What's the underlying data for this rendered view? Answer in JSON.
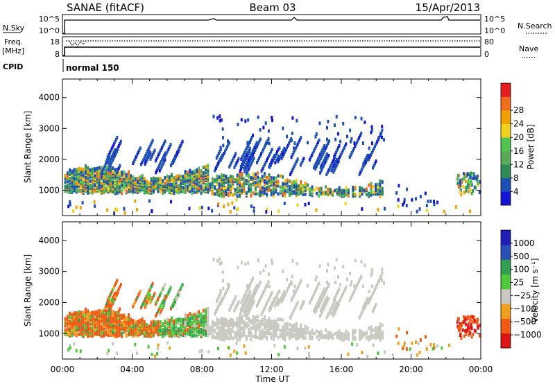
{
  "header": {
    "station": "SANAE (fitACF)",
    "beam": "Beam 03",
    "date": "15/Apr/2013"
  },
  "panels": {
    "nsky": {
      "label": "N.Sky",
      "tick_top": "10^5",
      "tick_bottom": "10^0",
      "right_tick_top": "10^5",
      "right_tick_bottom": "10^0",
      "right_label": "N.Search"
    },
    "freq": {
      "label_line1": "Freq.",
      "label_line2": "[MHz]",
      "tick_top": "18",
      "tick_bottom": "8",
      "right_tick_top": "80",
      "right_tick_bottom": "0",
      "right_label": "Nave"
    },
    "cpid": {
      "label": "CPID",
      "mode": "normal 150"
    }
  },
  "colors": {
    "power": [
      "#1414d2",
      "#1e50b4",
      "#2e8b57",
      "#5aaa5a",
      "#50c850",
      "#f0d21e",
      "#f0a000",
      "#f06e1e",
      "#e61e1e"
    ],
    "velocity": [
      "#dc1414",
      "#f05a14",
      "#f0a01e",
      "#c8c8c0",
      "#50c83c",
      "#32a050",
      "#2850b4",
      "#1e1eb4"
    ]
  },
  "chart_data": [
    {
      "type": "heatmap",
      "name": "power",
      "xlabel": "",
      "ylabel": "Slant Range [km]",
      "xlim": [
        0,
        24
      ],
      "ylim": [
        180,
        4600
      ],
      "yticks": [
        1000,
        2000,
        3000,
        4000
      ],
      "colorbar": {
        "label": "Power [dB]",
        "ticks": [
          "4",
          "8",
          "12",
          "16",
          "20",
          "24",
          "28"
        ]
      }
    },
    {
      "type": "heatmap",
      "name": "velocity",
      "xlabel": "Time UT",
      "ylabel": "Slant Range [km]",
      "xlim": [
        0,
        24
      ],
      "ylim": [
        180,
        4600
      ],
      "yticks": [
        1000,
        2000,
        3000,
        4000
      ],
      "xtick_labels": [
        "00:00",
        "04:00",
        "08:00",
        "12:00",
        "16:00",
        "20:00",
        "00:00"
      ],
      "colorbar": {
        "label": "Velocity [m s⁻¹]",
        "ticks": [
          "1000",
          "500",
          "100",
          "25",
          "−25",
          "−100",
          "−500",
          "−1000"
        ]
      }
    }
  ]
}
